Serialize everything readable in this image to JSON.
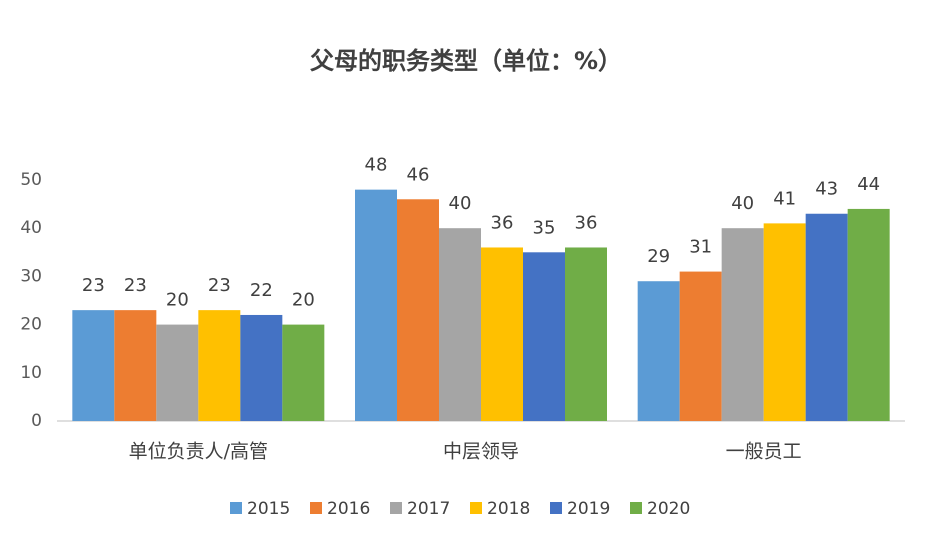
{
  "chart_data": {
    "type": "bar",
    "title": "父母的职务类型（单位：%）",
    "categories": [
      "单位负责人/高管",
      "中层领导",
      "一般员工"
    ],
    "series": [
      {
        "name": "2015",
        "color": "#5b9bd5",
        "values": [
          23,
          48,
          29
        ]
      },
      {
        "name": "2016",
        "color": "#ed7d31",
        "values": [
          23,
          46,
          31
        ]
      },
      {
        "name": "2017",
        "color": "#a5a5a5",
        "values": [
          20,
          40,
          40
        ]
      },
      {
        "name": "2018",
        "color": "#ffc000",
        "values": [
          23,
          36,
          41
        ]
      },
      {
        "name": "2019",
        "color": "#4472c4",
        "values": [
          22,
          35,
          43
        ]
      },
      {
        "name": "2020",
        "color": "#70ad47",
        "values": [
          20,
          36,
          44
        ]
      }
    ],
    "ylim": [
      0,
      50
    ],
    "yticks": [
      0,
      10,
      20,
      30,
      40,
      50
    ],
    "grid": false,
    "legend": "bottom"
  }
}
